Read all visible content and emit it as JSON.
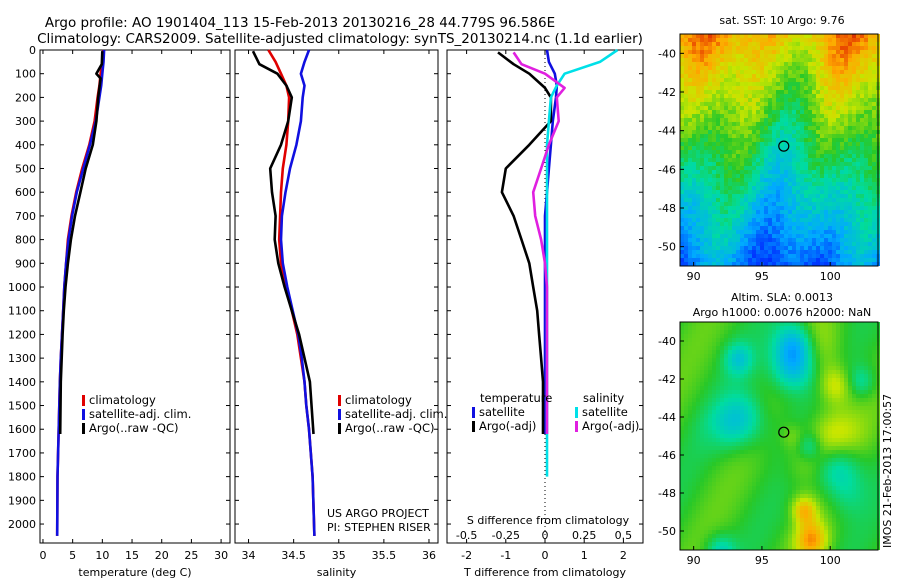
{
  "header": {
    "line1": "Argo profile: AO 1901404_113 15-Feb-2013 20130216_28 44.779S 96.586E",
    "line2": "Climatology: CARS2009. Satellite-adjusted climatology: synTS_20130214.nc (1.1d earlier)"
  },
  "colors": {
    "climatology": "#e00000",
    "satellite": "#1010e0",
    "argo": "#000000",
    "sat_salinity": "#00e0e8",
    "argo_adj_salinity": "#e020e0"
  },
  "chart_data": [
    {
      "type": "line",
      "panel": "temperature",
      "xlabel": "temperature (deg C)",
      "ylabel": "",
      "xlim": [
        -0.5,
        31.5
      ],
      "ylim": [
        2080,
        0
      ],
      "xticks": [
        0,
        5,
        10,
        15,
        20,
        25,
        30
      ],
      "yticks": [
        0,
        100,
        200,
        300,
        400,
        500,
        600,
        700,
        800,
        900,
        1000,
        1100,
        1200,
        1300,
        1400,
        1500,
        1600,
        1700,
        1800,
        1900,
        2000
      ],
      "legend": [
        "climatology",
        "satellite-adj. clim.",
        "Argo(..raw -QC)"
      ],
      "series": [
        {
          "name": "climatology",
          "color": "#e00000",
          "x": [
            10.2,
            10.0,
            9.7,
            9.5,
            9.2,
            8.7,
            7.8,
            6.6,
            5.6,
            4.8,
            4.2,
            3.9,
            3.6,
            3.4,
            3.2,
            3.0,
            2.85,
            2.75,
            2.65,
            2.55,
            2.45,
            2.4
          ],
          "y": [
            0,
            50,
            100,
            150,
            200,
            300,
            400,
            500,
            600,
            700,
            800,
            900,
            1000,
            1100,
            1200,
            1300,
            1400,
            1500,
            1600,
            1700,
            1800,
            2050
          ]
        },
        {
          "name": "satellite-adj. clim.",
          "color": "#1010e0",
          "x": [
            10.3,
            10.2,
            10.0,
            9.8,
            9.5,
            8.9,
            7.9,
            6.8,
            5.7,
            4.9,
            4.3,
            3.9,
            3.6,
            3.4,
            3.2,
            3.0,
            2.85,
            2.75,
            2.65,
            2.55,
            2.45,
            2.4
          ],
          "y": [
            0,
            50,
            100,
            150,
            200,
            300,
            400,
            500,
            600,
            700,
            800,
            900,
            1000,
            1100,
            1200,
            1300,
            1400,
            1500,
            1600,
            1700,
            1800,
            2050
          ]
        },
        {
          "name": "Argo(..raw -QC)",
          "color": "#000000",
          "x": [
            10.0,
            9.9,
            9.0,
            9.7,
            9.3,
            9.0,
            8.4,
            7.2,
            6.3,
            5.4,
            4.7,
            4.2,
            3.8,
            3.5,
            3.3,
            3.15,
            3.0,
            2.9
          ],
          "y": [
            5,
            60,
            100,
            120,
            200,
            300,
            400,
            500,
            600,
            700,
            800,
            900,
            1000,
            1100,
            1200,
            1300,
            1400,
            1620
          ]
        }
      ]
    },
    {
      "type": "line",
      "panel": "salinity",
      "xlabel": "salinity",
      "xlim": [
        33.85,
        36.1
      ],
      "ylim": [
        2080,
        0
      ],
      "xticks": [
        34,
        34.5,
        35,
        35.5,
        36
      ],
      "legend": [
        "climatology",
        "satellite-adj. clim.",
        "Argo(..raw -QC)"
      ],
      "annotations": [
        "US ARGO PROJECT",
        "PI: STEPHEN RISER"
      ],
      "series": [
        {
          "name": "climatology",
          "color": "#e00000",
          "x": [
            34.22,
            34.3,
            34.36,
            34.42,
            34.45,
            34.44,
            34.42,
            34.38,
            34.36,
            34.35,
            34.34,
            34.36,
            34.42,
            34.48,
            34.54,
            34.58,
            34.62,
            34.64,
            34.67,
            34.69,
            34.71,
            34.73
          ],
          "y": [
            0,
            50,
            100,
            150,
            200,
            300,
            400,
            500,
            600,
            700,
            800,
            900,
            1000,
            1100,
            1200,
            1300,
            1400,
            1500,
            1600,
            1700,
            1800,
            2050
          ]
        },
        {
          "name": "satellite-adj. clim.",
          "color": "#1010e0",
          "x": [
            34.67,
            34.62,
            34.58,
            34.62,
            34.6,
            34.58,
            34.53,
            34.46,
            34.41,
            34.37,
            34.36,
            34.38,
            34.43,
            34.49,
            34.55,
            34.59,
            34.62,
            34.64,
            34.67,
            34.69,
            34.71,
            34.73
          ],
          "y": [
            0,
            50,
            100,
            150,
            200,
            300,
            400,
            500,
            600,
            700,
            800,
            900,
            1000,
            1100,
            1200,
            1300,
            1400,
            1500,
            1600,
            1700,
            1800,
            2050
          ]
        },
        {
          "name": "Argo(..raw -QC)",
          "color": "#000000",
          "x": [
            34.05,
            34.12,
            34.32,
            34.42,
            34.48,
            34.44,
            34.36,
            34.24,
            34.26,
            34.3,
            34.29,
            34.33,
            34.4,
            34.48,
            34.56,
            34.62,
            34.68,
            34.72
          ],
          "y": [
            5,
            60,
            100,
            150,
            200,
            300,
            400,
            500,
            600,
            700,
            800,
            900,
            1000,
            1100,
            1200,
            1300,
            1400,
            1620
          ]
        }
      ]
    },
    {
      "type": "line",
      "panel": "difference",
      "xlabel": "T difference from climatology",
      "top_xlabel": "S difference from climatology",
      "xlim": [
        -2.5,
        2.5
      ],
      "ylim": [
        2080,
        0
      ],
      "xticks": [
        -2,
        -1,
        0,
        1,
        2
      ],
      "xticklabels": [
        "-2",
        "-1",
        "0",
        "1",
        "2"
      ],
      "top_xticks": [
        -0.5,
        -0.25,
        0,
        0.25,
        0.5
      ],
      "legend_titles": [
        "temperature",
        "salinity"
      ],
      "legend": [
        "satellite",
        "Argo(-adj)",
        "satellite",
        "Argo(-adj)"
      ],
      "series": [
        {
          "name": "satellite",
          "color": "#1010e0",
          "x": [
            0.05,
            0.1,
            0.25,
            0.3,
            0.28,
            0.2,
            0.15,
            0.1,
            0.05,
            0.0,
            0.0,
            0.0,
            0.0,
            0.0,
            0.0,
            0.0,
            0.0,
            0.0,
            0.0
          ],
          "y": [
            0,
            50,
            100,
            150,
            200,
            300,
            400,
            500,
            600,
            700,
            800,
            900,
            1000,
            1100,
            1200,
            1300,
            1400,
            1500,
            1620
          ]
        },
        {
          "name": "Argo(-adj)",
          "color": "#000000",
          "x": [
            -1.2,
            -0.8,
            -0.4,
            0.0,
            0.15,
            0.15,
            -0.4,
            -1.0,
            -1.1,
            -0.8,
            -0.6,
            -0.4,
            -0.3,
            -0.2,
            -0.15,
            -0.1,
            -0.05,
            -0.05
          ],
          "y": [
            10,
            60,
            100,
            160,
            200,
            300,
            400,
            500,
            600,
            700,
            800,
            900,
            1000,
            1100,
            1200,
            1300,
            1400,
            1620
          ]
        },
        {
          "name": "satellite",
          "color": "#00e0e8",
          "x": [
            1.85,
            1.4,
            0.5,
            0.3,
            0.15,
            0.1,
            0.05,
            0.05,
            0.05,
            0.05,
            0.05,
            0.05,
            0.05,
            0.05,
            0.05,
            0.05,
            0.05,
            0.05,
            0.05,
            0.05,
            0.05
          ],
          "y": [
            0,
            50,
            100,
            150,
            200,
            300,
            400,
            500,
            600,
            700,
            800,
            900,
            1000,
            1100,
            1200,
            1300,
            1400,
            1500,
            1600,
            1700,
            1800
          ]
        },
        {
          "name": "Argo(-adj)",
          "color": "#e020e0",
          "x": [
            -0.8,
            -0.6,
            0.0,
            0.5,
            0.3,
            0.35,
            0.1,
            -0.1,
            -0.3,
            -0.25,
            -0.1,
            0.0,
            0.05,
            0.05,
            0.05,
            0.05,
            0.05,
            0.05
          ],
          "y": [
            10,
            60,
            100,
            160,
            200,
            300,
            400,
            500,
            600,
            700,
            800,
            900,
            1000,
            1100,
            1200,
            1300,
            1400,
            1620
          ]
        }
      ]
    },
    {
      "type": "heatmap",
      "panel": "sst-map",
      "title": "sat. SST: 10 Argo: 9.76",
      "xlim": [
        89,
        103.5
      ],
      "ylim": [
        -51,
        -39
      ],
      "xticks": [
        90,
        95,
        100
      ],
      "yticks": [
        -40,
        -42,
        -44,
        -46,
        -48,
        -50
      ],
      "argo_position": {
        "lon": 96.6,
        "lat": -44.8
      }
    },
    {
      "type": "heatmap",
      "panel": "sla-map",
      "title": "Altim. SLA: 0.0013",
      "subtitle": "Argo h1000: 0.0076 h2000: NaN",
      "xlim": [
        89,
        103.5
      ],
      "ylim": [
        -51,
        -39
      ],
      "xticks": [
        90,
        95,
        100
      ],
      "yticks": [
        -40,
        -42,
        -44,
        -46,
        -48,
        -50
      ],
      "argo_position": {
        "lon": 96.6,
        "lat": -44.8
      }
    }
  ],
  "footer": {
    "side_label": "IMOS 21-Feb-2013 17:00:57"
  }
}
